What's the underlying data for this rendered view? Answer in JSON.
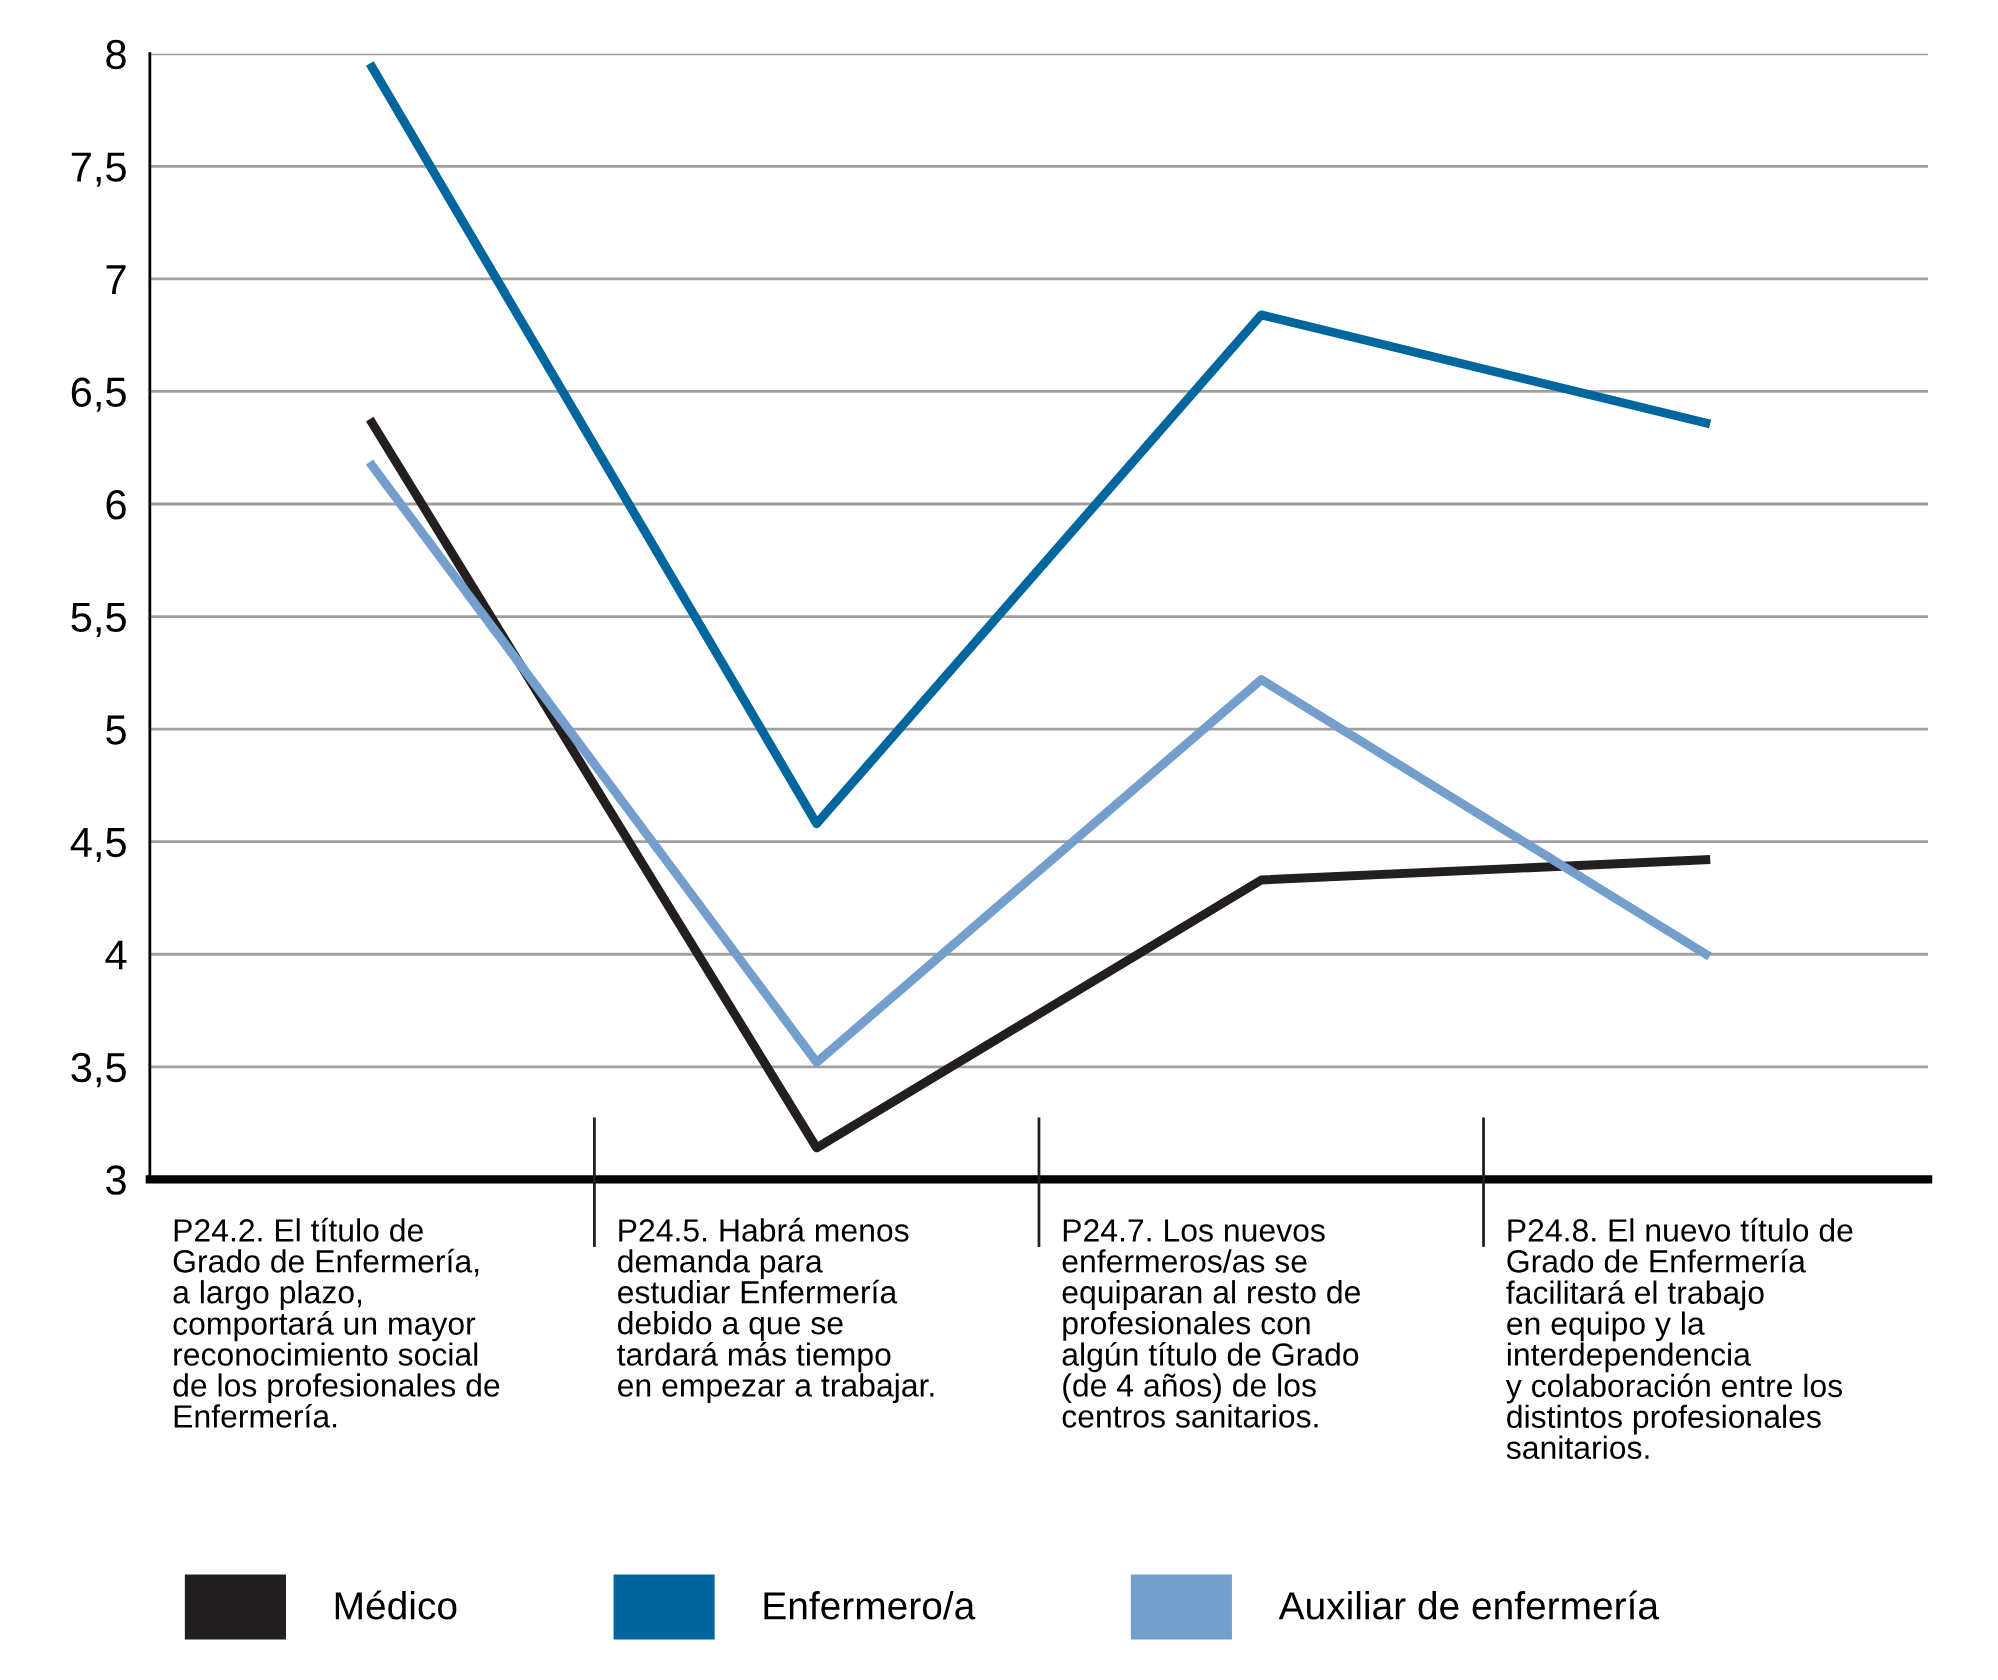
{
  "chart_data": {
    "type": "line",
    "categories": [
      "P24.2. El título de\nGrado de Enfermería,\na largo plazo,\ncomportará un mayor\nreconocimiento social\nde los profesionales de\nEnfermería.",
      "P24.5. Habrá menos\ndemanda para\nestudiar Enfermería\ndebido a que se\ntardará más tiempo\nen empezar a trabajar.",
      "P24.7. Los nuevos\nenfermeros/as se\nequiparan al resto de\nprofesionales con\nalgún título de Grado\n(de 4 años) de los\ncentros sanitarios.",
      "P24.8. El nuevo título de\nGrado de Enfermería\nfacilitará el trabajo\nen equipo y la\ninterdependencia\ny colaboración entre los\ndistintos profesionales\nsanitarios."
    ],
    "series": [
      {
        "name": "Médico",
        "color": "#231f20",
        "values": [
          6.36,
          3.14,
          4.33,
          4.42
        ]
      },
      {
        "name": "Enfermero/a",
        "color": "#00669e",
        "values": [
          7.94,
          4.58,
          6.84,
          6.36
        ]
      },
      {
        "name": "Auxiliar de enfermería",
        "color": "#749ecb",
        "values": [
          6.17,
          3.52,
          5.22,
          4.0
        ]
      }
    ],
    "ylim": [
      3,
      8
    ],
    "yticks": [
      3,
      {
        "value": 3.5,
        "label": "3,5"
      },
      4,
      {
        "value": 4.5,
        "label": "4,5"
      },
      5,
      {
        "value": 5.5,
        "label": "5,5"
      },
      6,
      {
        "value": 6.5,
        "label": "6,5"
      },
      7,
      {
        "value": 7.5,
        "label": "7,5"
      },
      8
    ],
    "grid": "y",
    "legend": "bottom",
    "marker": "none",
    "line_style": "solid"
  }
}
